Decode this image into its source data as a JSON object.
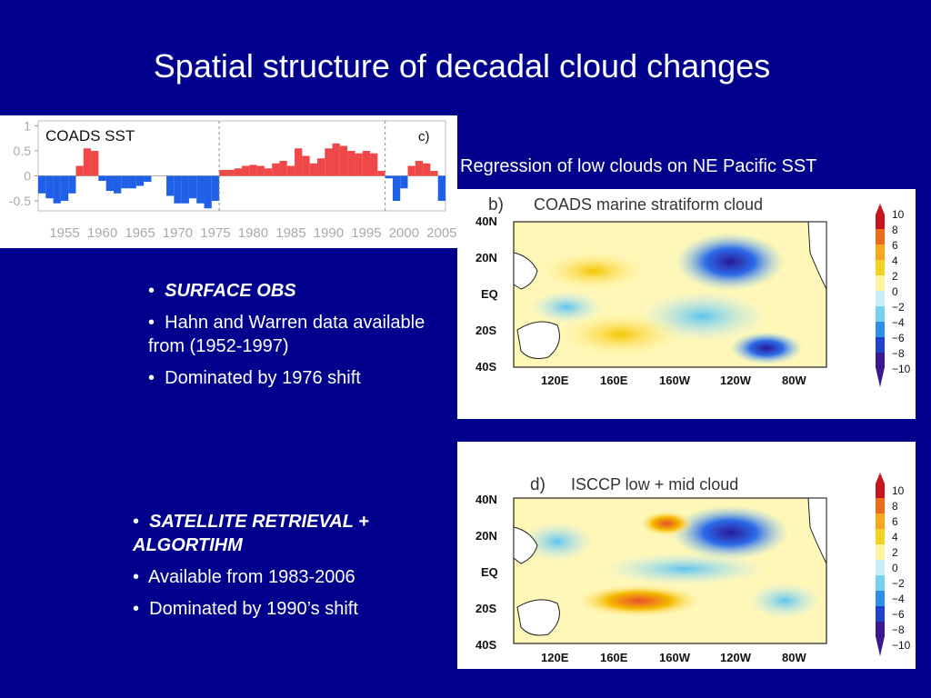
{
  "slide": {
    "title": "Spatial structure of decadal cloud changes",
    "caption": "Regression of low clouds  on NE Pacific SST",
    "bullet_marker": "•"
  },
  "surface_section": {
    "heading": "SURFACE OBS",
    "items": [
      "Hahn and Warren data available from (1952-1997)",
      "Dominated by 1976 shift"
    ]
  },
  "satellite_section": {
    "heading": "SATELLITE RETRIEVAL + ALGORTIHM",
    "items": [
      "Available from 1983-2006",
      "Dominated by 1990’s shift"
    ]
  },
  "colors": {
    "background": "#00008c",
    "positive_bar": "#f04848",
    "negative_bar": "#2060e8"
  },
  "chart_data": [
    {
      "type": "bar",
      "title": "COADS  SST",
      "panel_label": "c)",
      "x": [
        1952,
        1953,
        1954,
        1955,
        1956,
        1957,
        1958,
        1959,
        1960,
        1961,
        1962,
        1963,
        1964,
        1965,
        1966,
        1967,
        1968,
        1969,
        1970,
        1971,
        1972,
        1973,
        1974,
        1975,
        1976,
        1977,
        1978,
        1979,
        1980,
        1981,
        1982,
        1983,
        1984,
        1985,
        1986,
        1987,
        1988,
        1989,
        1990,
        1991,
        1992,
        1993,
        1994,
        1995,
        1996,
        1997,
        1998,
        1999,
        2000,
        2001,
        2002,
        2003,
        2004,
        2005
      ],
      "values": [
        -0.35,
        -0.45,
        -0.55,
        -0.5,
        -0.35,
        0.2,
        0.55,
        0.5,
        -0.1,
        -0.3,
        -0.35,
        -0.25,
        -0.25,
        -0.2,
        -0.12,
        0,
        0,
        -0.4,
        -0.55,
        -0.55,
        -0.45,
        -0.55,
        -0.65,
        -0.5,
        0.12,
        0.12,
        0.15,
        0.2,
        0.22,
        0.2,
        0.15,
        0.25,
        0.3,
        0.2,
        0.55,
        0.4,
        0.25,
        0.35,
        0.55,
        0.65,
        0.6,
        0.5,
        0.45,
        0.5,
        0.45,
        0.1,
        -0.05,
        -0.5,
        -0.25,
        0.2,
        0.3,
        0.25,
        0.1,
        -0.5
      ],
      "yticks": [
        "1",
        "0.5",
        "0",
        "-0.5"
      ],
      "ylim": [
        -0.7,
        1.1
      ],
      "xtick_labels": [
        "1955",
        "1960",
        "1965",
        "1970",
        "1975",
        "1980",
        "1985",
        "1990",
        "1995",
        "2000",
        "2005"
      ],
      "dashed_year_lines": [
        1976,
        1998
      ]
    },
    {
      "type": "heatmap",
      "panel_label": "b)",
      "title": "COADS  marine  stratiform  cloud",
      "lat_labels": [
        "40N",
        "20N",
        "EQ",
        "20S",
        "40S"
      ],
      "lon_labels": [
        "120E",
        "160E",
        "160W",
        "120W",
        "80W"
      ],
      "colorbar_ticks": [
        "10",
        "8",
        "6",
        "4",
        "2",
        "0",
        "−2",
        "−4",
        "−6",
        "−8",
        "−10"
      ]
    },
    {
      "type": "heatmap",
      "panel_label": "d)",
      "title": "ISCCP  low  +  mid  cloud",
      "lat_labels": [
        "40N",
        "20N",
        "EQ",
        "20S",
        "40S"
      ],
      "lon_labels": [
        "120E",
        "160E",
        "160W",
        "120W",
        "80W"
      ],
      "colorbar_ticks": [
        "10",
        "8",
        "6",
        "4",
        "2",
        "0",
        "−2",
        "−4",
        "−6",
        "−8",
        "−10"
      ]
    }
  ]
}
